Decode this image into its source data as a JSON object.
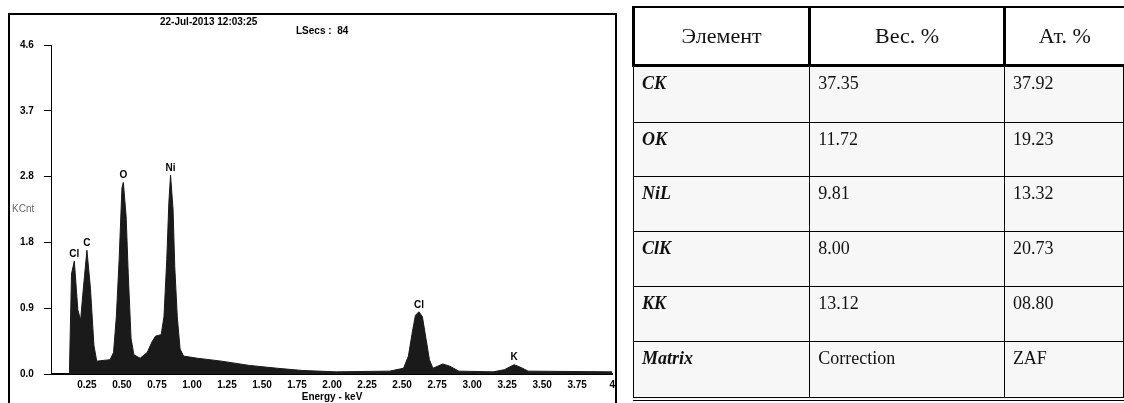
{
  "chart_data": [
    {
      "type": "area",
      "xlabel": "Energy - keV",
      "ylabel": "KCnt",
      "color": "#1a1a1a",
      "annotations": [
        "22-Jul-2013 12:03:25",
        "LSecs :  84",
        {
          "text": "Cl",
          "x": 0.16,
          "y": 1.58
        },
        {
          "text": "C",
          "x": 0.25,
          "y": 1.73
        },
        {
          "text": "O",
          "x": 0.51,
          "y": 2.68
        },
        {
          "text": "Ni",
          "x": 0.847,
          "y": 2.78
        },
        {
          "text": "Cl",
          "x": 2.62,
          "y": 0.87
        },
        {
          "text": "K",
          "x": 3.3,
          "y": 0.13
        }
      ],
      "x": [
        0.12,
        0.125,
        0.14,
        0.16,
        0.185,
        0.205,
        0.22,
        0.25,
        0.275,
        0.3,
        0.32,
        0.415,
        0.44,
        0.46,
        0.48,
        0.5,
        0.51,
        0.53,
        0.545,
        0.565,
        0.585,
        0.63,
        0.68,
        0.715,
        0.74,
        0.78,
        0.8,
        0.82,
        0.835,
        0.847,
        0.865,
        0.877,
        0.895,
        0.915,
        0.94,
        1.04,
        1.21,
        1.41,
        1.61,
        1.785,
        2.03,
        2.41,
        2.51,
        2.545,
        2.57,
        2.595,
        2.62,
        2.645,
        2.67,
        2.695,
        2.72,
        2.79,
        2.84,
        2.905,
        3.15,
        3.23,
        3.3,
        3.35,
        3.4,
        4.0
      ],
      "values": [
        0,
        0.02,
        1.4,
        1.58,
        0.9,
        0.75,
        1.1,
        1.73,
        1.2,
        0.4,
        0.18,
        0.2,
        0.3,
        0.8,
        1.6,
        2.6,
        2.68,
        2.2,
        1.4,
        0.5,
        0.27,
        0.22,
        0.3,
        0.45,
        0.53,
        0.55,
        0.8,
        1.6,
        2.4,
        2.78,
        2.3,
        1.5,
        0.8,
        0.35,
        0.25,
        0.22,
        0.18,
        0.12,
        0.08,
        0.05,
        0.03,
        0.04,
        0.08,
        0.25,
        0.55,
        0.82,
        0.87,
        0.8,
        0.5,
        0.2,
        0.08,
        0.14,
        0.11,
        0.04,
        0.03,
        0.06,
        0.13,
        0.09,
        0.04,
        0.03
      ],
      "xlim": [
        0,
        4
      ],
      "xticks": [
        0.25,
        {
          "value": 0.5,
          "label": "0.50"
        },
        0.75,
        {
          "value": 1,
          "label": "1.00"
        },
        1.25,
        {
          "value": 1.5,
          "label": "1.50"
        },
        1.75,
        {
          "value": 2,
          "label": "2.00"
        },
        2.25,
        {
          "value": 2.5,
          "label": "2.50"
        },
        2.75,
        {
          "value": 3,
          "label": "3.00"
        },
        3.25,
        {
          "value": 3.5,
          "label": "3.50"
        },
        3.75,
        {
          "value": 4,
          "label": "4"
        }
      ],
      "ylim": [
        0,
        4.6
      ],
      "yticks": [
        {
          "value": 0,
          "label": "0.0"
        },
        {
          "value": 0.92,
          "label": "0.9"
        },
        {
          "value": 1.84,
          "label": "1.8"
        },
        {
          "value": 2.76,
          "label": "2.8"
        },
        {
          "value": 3.68,
          "label": "3.7"
        },
        {
          "value": 4.6,
          "label": "4.6"
        }
      ]
    },
    {
      "type": "other",
      "categories": [
        "Элемент",
        "Вес. %",
        "Ат. %"
      ],
      "annotations": [
        "CK",
        "37.35",
        "37.92",
        "OK",
        "11.72",
        "19.23",
        "NiL",
        "9.81",
        "13.32",
        "ClK",
        "8.00",
        "20.73",
        "KK",
        "13.12",
        "08.80",
        "Matrix",
        "Correction",
        "ZAF"
      ]
    }
  ]
}
